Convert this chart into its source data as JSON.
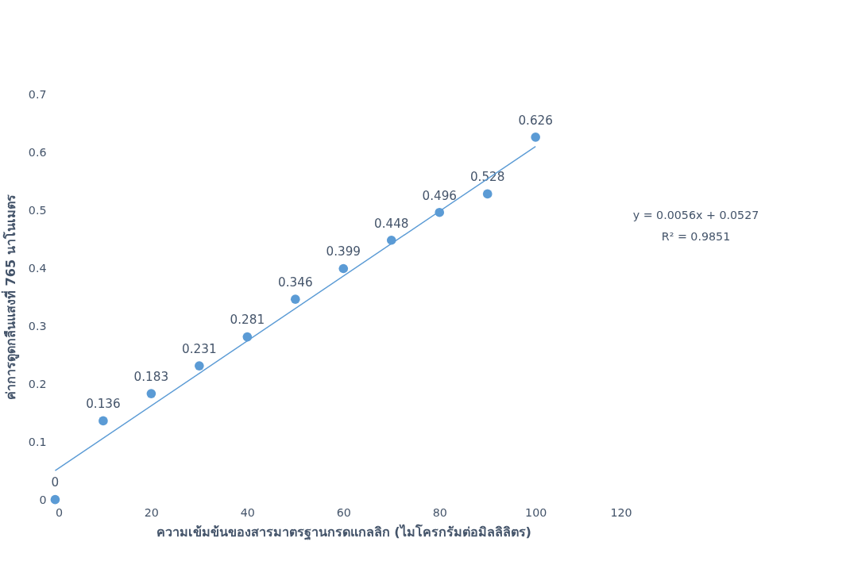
{
  "chart_data": {
    "type": "scatter",
    "xlabel": "ความเข้มข้นของสารมาตรฐานกรดแกลลิก (ไมโครกรัมต่อมิลลิลิตร)",
    "ylabel": "ค่าการดูดกลืนแสงที่ 765 นาโนเมตร",
    "x": [
      0,
      10,
      20,
      30,
      40,
      50,
      60,
      70,
      80,
      90,
      100
    ],
    "series": [
      {
        "color": "#5b9bd5",
        "marker": "circle",
        "values": [
          0,
          0.136,
          0.183,
          0.231,
          0.281,
          0.346,
          0.399,
          0.448,
          0.496,
          0.528,
          0.626
        ],
        "value_labels": [
          "0",
          "0.136",
          "0.183",
          "0.231",
          "0.281",
          "0.346",
          "0.399",
          "0.448",
          "0.496",
          "0.528",
          "0.626"
        ]
      },
      {
        "type": "line",
        "color": "#5b9bd5",
        "marker": "none",
        "x": [
          0,
          100
        ],
        "values": [
          0.05,
          0.61
        ]
      }
    ],
    "grid": false,
    "annotations": [
      "y = 0.0056x + 0.0527",
      "R² = 0.9851"
    ],
    "xlim": [
      0,
      120
    ],
    "xticks": [
      0,
      20,
      40,
      60,
      80,
      100,
      120
    ],
    "ylim": [
      0,
      0.7
    ],
    "yticks": [
      0,
      0.1,
      0.2,
      0.3,
      0.4,
      0.5,
      0.6,
      0.7
    ]
  }
}
